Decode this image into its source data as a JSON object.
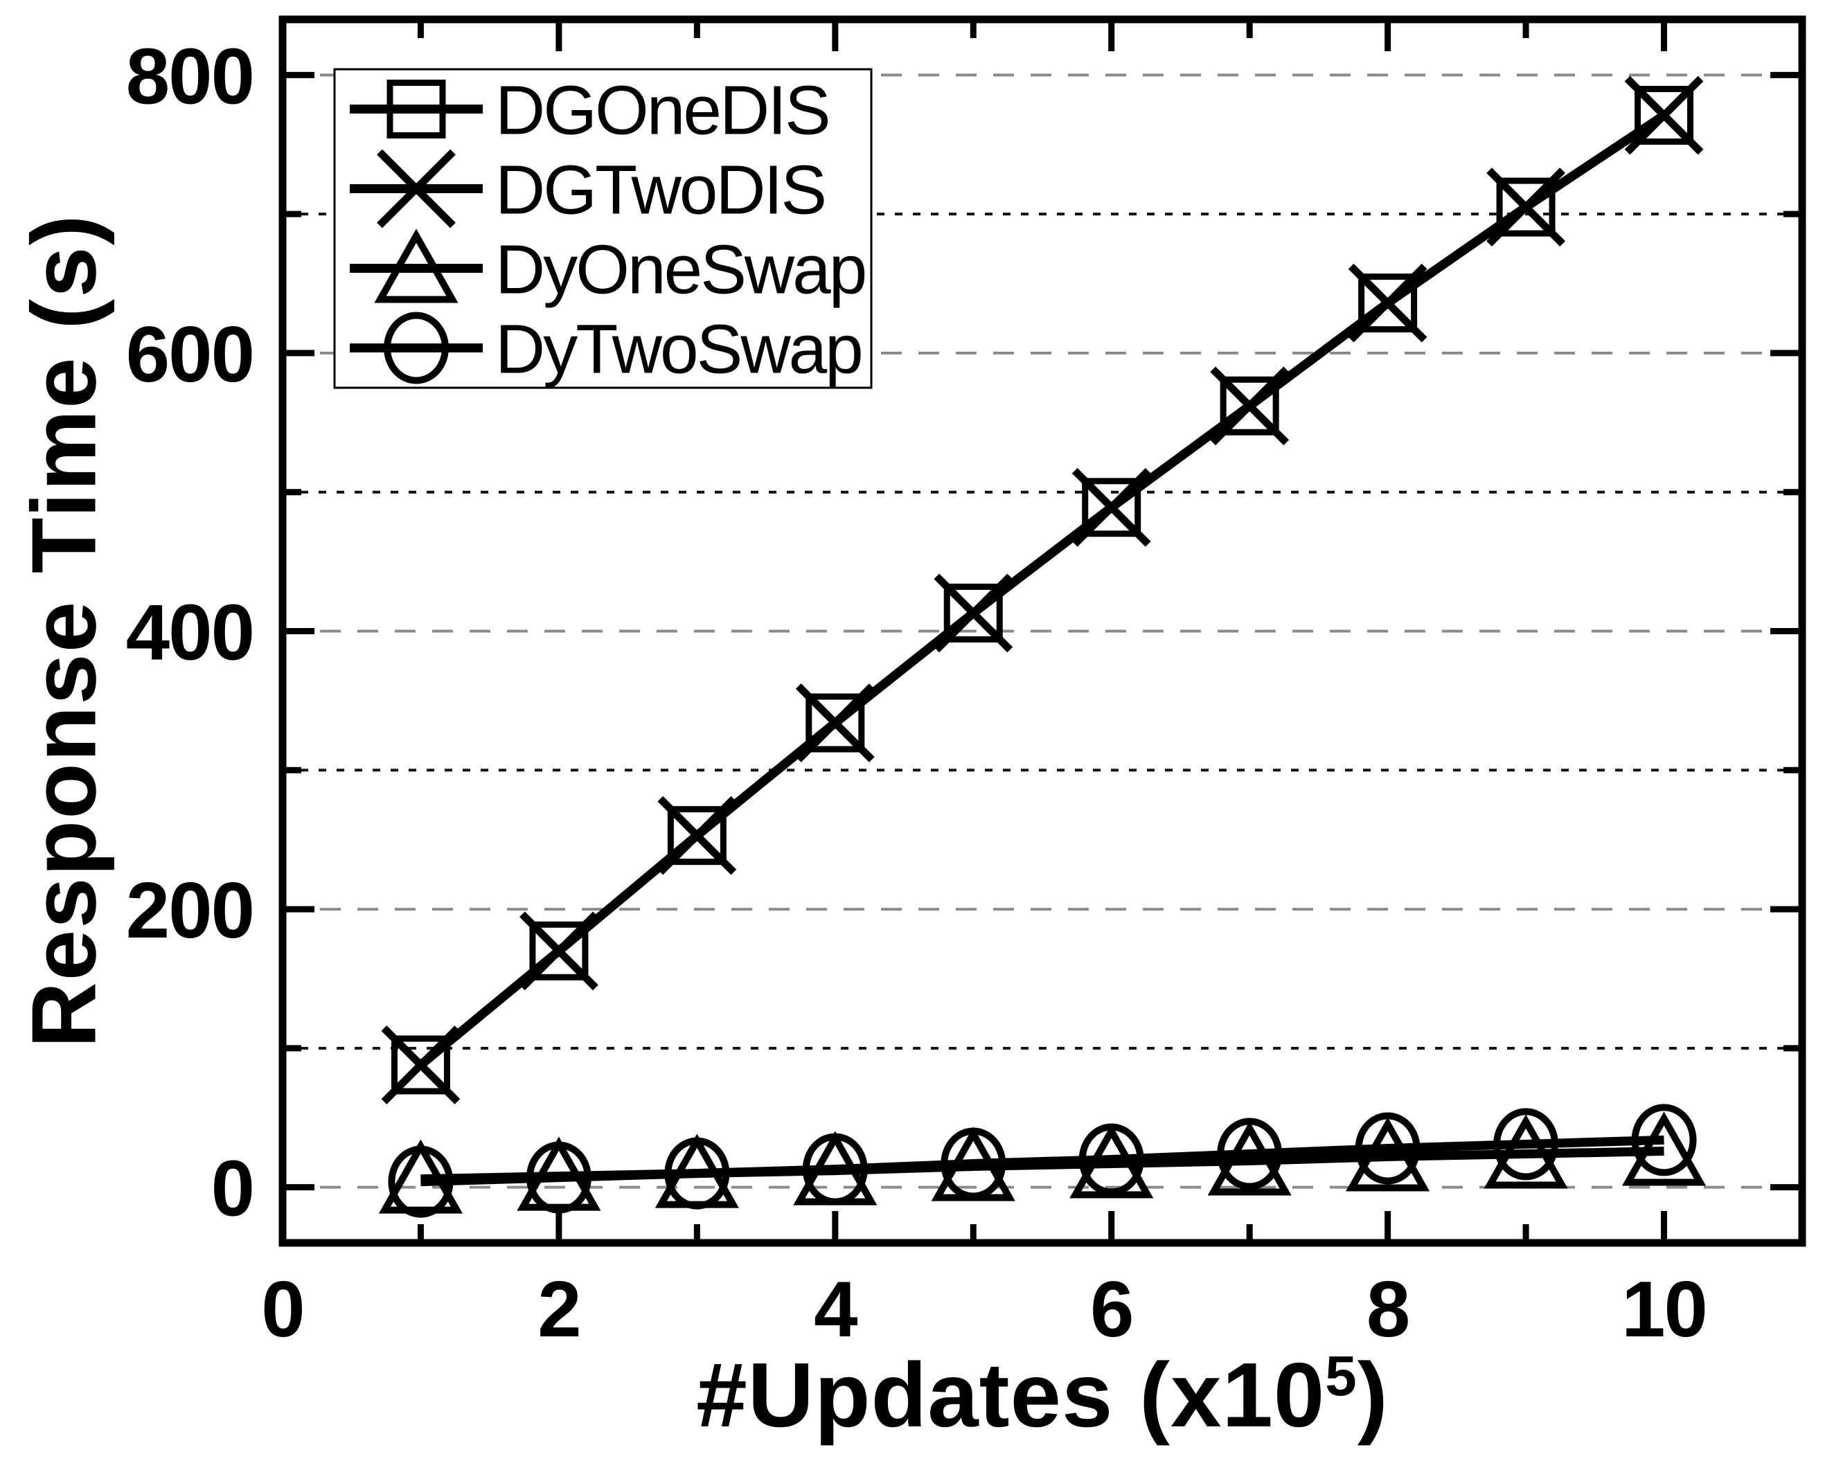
{
  "chart_data": {
    "type": "line",
    "title": "",
    "ylabel": "Response Time (s)",
    "xlabel": {
      "prefix": "#Updates (x10",
      "sup": "5",
      "suffix": ")"
    },
    "x_range": [
      0,
      11
    ],
    "y_range": [
      -40,
      840
    ],
    "x_major_ticks": [
      0,
      2,
      4,
      6,
      8,
      10
    ],
    "x_minor_ticks": [
      1,
      3,
      5,
      7,
      9
    ],
    "y_major_ticks": [
      0,
      200,
      400,
      600,
      800
    ],
    "y_minor_ticks": [
      100,
      300,
      500,
      700
    ],
    "grid": {
      "major_color": "#8a8a8a",
      "minor_color": "#111111",
      "major_dash": "30 24",
      "minor_dash": "11 15"
    },
    "axis_color": "#000000",
    "legend_position": "top-left",
    "x": [
      1,
      2,
      3,
      4,
      5,
      6,
      7,
      8,
      9,
      10
    ],
    "series": [
      {
        "name": "DGOneDIS",
        "marker": "square",
        "values": [
          88,
          170,
          253,
          334,
          413,
          489,
          562,
          636,
          705,
          771
        ]
      },
      {
        "name": "DGTwoDIS",
        "marker": "xcross",
        "values": [
          88,
          170,
          253,
          334,
          413,
          489,
          562,
          636,
          705,
          771
        ]
      },
      {
        "name": "DyOneSwap",
        "marker": "triangle",
        "values": [
          6,
          8,
          10,
          12,
          15,
          17,
          19,
          22,
          24,
          26
        ]
      },
      {
        "name": "DyTwoSwap",
        "marker": "circle",
        "values": [
          4,
          7,
          10,
          13,
          17,
          20,
          24,
          28,
          31,
          34
        ]
      }
    ]
  }
}
